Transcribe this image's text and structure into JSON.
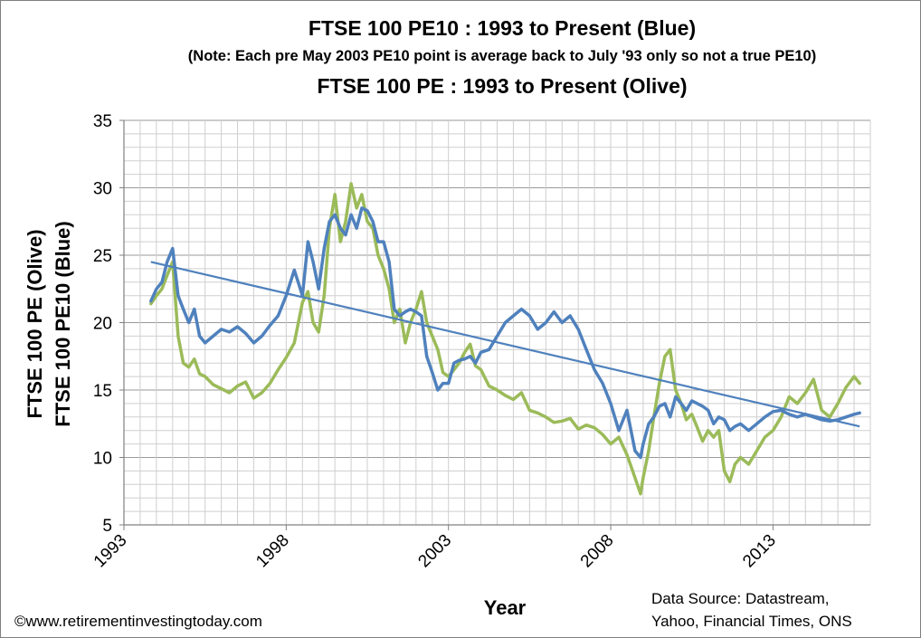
{
  "chart_data": {
    "type": "line",
    "title": "FTSE 100 PE10 : 1993 to Present (Blue)",
    "note": "(Note:  Each pre May 2003  PE10 point is average  back to July '93 only so not a true PE10)",
    "subtitle": "FTSE 100 PE : 1993 to Present (Olive)",
    "xlabel": "Year",
    "ylabel_lines": [
      "FTSE 100 PE (Olive)",
      "FTSE 100 PE10 (Blue)"
    ],
    "xlim": [
      1993,
      2016
    ],
    "ylim": [
      5,
      35
    ],
    "x_ticks": [
      "1993",
      "1998",
      "2003",
      "2008",
      "2013"
    ],
    "x_tick_values": [
      1993,
      1998,
      2003,
      2008,
      2013
    ],
    "y_ticks": [
      "5",
      "10",
      "15",
      "20",
      "25",
      "30",
      "35"
    ],
    "y_tick_values": [
      5,
      10,
      15,
      20,
      25,
      30,
      35
    ],
    "grid": true,
    "x_minor_step": 0.5,
    "y_minor_step": 1,
    "series": [
      {
        "name": "FTSE 100 PE (Olive)",
        "color": "#9bbb59",
        "x": [
          1993.83,
          1994.0,
          1994.17,
          1994.33,
          1994.5,
          1994.67,
          1994.83,
          1995.0,
          1995.17,
          1995.33,
          1995.5,
          1995.75,
          1996.0,
          1996.25,
          1996.5,
          1996.75,
          1997.0,
          1997.25,
          1997.5,
          1997.75,
          1998.0,
          1998.25,
          1998.5,
          1998.67,
          1998.83,
          1999.0,
          1999.17,
          1999.33,
          1999.5,
          1999.67,
          1999.83,
          2000.0,
          2000.17,
          2000.33,
          2000.5,
          2000.67,
          2000.83,
          2001.0,
          2001.17,
          2001.33,
          2001.5,
          2001.67,
          2001.83,
          2002.0,
          2002.17,
          2002.33,
          2002.5,
          2002.67,
          2002.83,
          2003.0,
          2003.17,
          2003.33,
          2003.5,
          2003.67,
          2003.83,
          2004.0,
          2004.25,
          2004.5,
          2004.75,
          2005.0,
          2005.25,
          2005.5,
          2005.75,
          2006.0,
          2006.25,
          2006.5,
          2006.75,
          2007.0,
          2007.25,
          2007.5,
          2007.75,
          2008.0,
          2008.25,
          2008.5,
          2008.75,
          2008.92,
          2009.0,
          2009.17,
          2009.33,
          2009.5,
          2009.67,
          2009.83,
          2010.0,
          2010.17,
          2010.33,
          2010.5,
          2010.67,
          2010.83,
          2011.0,
          2011.17,
          2011.33,
          2011.5,
          2011.67,
          2011.83,
          2012.0,
          2012.25,
          2012.5,
          2012.75,
          2013.0,
          2013.25,
          2013.5,
          2013.75,
          2014.0,
          2014.25,
          2014.5,
          2014.75,
          2015.0,
          2015.25,
          2015.5,
          2015.67
        ],
        "values": [
          21.4,
          22.0,
          22.5,
          23.5,
          24.5,
          19.0,
          17.0,
          16.7,
          17.3,
          16.2,
          16.0,
          15.4,
          15.1,
          14.8,
          15.3,
          15.6,
          14.4,
          14.8,
          15.5,
          16.5,
          17.4,
          18.5,
          21.5,
          22.3,
          20.0,
          19.3,
          22.0,
          27.0,
          29.5,
          26.0,
          27.5,
          30.3,
          28.5,
          29.5,
          27.5,
          27.0,
          25.0,
          24.0,
          22.5,
          20.0,
          21.0,
          18.5,
          20.0,
          21.0,
          22.3,
          20.0,
          19.0,
          18.0,
          16.3,
          16.0,
          16.5,
          17.0,
          17.8,
          18.4,
          16.8,
          16.5,
          15.3,
          15.0,
          14.6,
          14.3,
          14.8,
          13.5,
          13.3,
          13.0,
          12.6,
          12.7,
          12.9,
          12.1,
          12.4,
          12.2,
          11.7,
          11.0,
          11.5,
          10.2,
          8.5,
          7.3,
          8.5,
          10.5,
          13.0,
          15.5,
          17.5,
          18.0,
          15.0,
          14.0,
          12.8,
          13.2,
          12.2,
          11.2,
          12.0,
          11.5,
          12.0,
          9.0,
          8.2,
          9.5,
          10.0,
          9.5,
          10.5,
          11.5,
          12.0,
          13.0,
          14.5,
          14.0,
          14.8,
          15.8,
          13.5,
          13.0,
          14.0,
          15.2,
          16.0,
          15.5
        ],
        "trend": null
      },
      {
        "name": "FTSE 100 PE10 (Blue)",
        "color": "#4f81bd",
        "x": [
          1993.83,
          1994.0,
          1994.17,
          1994.33,
          1994.5,
          1994.67,
          1994.83,
          1995.0,
          1995.17,
          1995.33,
          1995.5,
          1995.75,
          1996.0,
          1996.25,
          1996.5,
          1996.75,
          1997.0,
          1997.25,
          1997.5,
          1997.75,
          1998.0,
          1998.25,
          1998.5,
          1998.67,
          1998.83,
          1999.0,
          1999.17,
          1999.33,
          1999.5,
          1999.67,
          1999.83,
          2000.0,
          2000.17,
          2000.33,
          2000.5,
          2000.67,
          2000.83,
          2001.0,
          2001.17,
          2001.33,
          2001.5,
          2001.67,
          2001.83,
          2002.0,
          2002.17,
          2002.33,
          2002.5,
          2002.67,
          2002.83,
          2003.0,
          2003.17,
          2003.33,
          2003.5,
          2003.67,
          2003.83,
          2004.0,
          2004.25,
          2004.5,
          2004.75,
          2005.0,
          2005.25,
          2005.5,
          2005.75,
          2006.0,
          2006.25,
          2006.5,
          2006.75,
          2007.0,
          2007.25,
          2007.5,
          2007.75,
          2008.0,
          2008.25,
          2008.5,
          2008.75,
          2008.92,
          2009.0,
          2009.17,
          2009.33,
          2009.5,
          2009.67,
          2009.83,
          2010.0,
          2010.17,
          2010.33,
          2010.5,
          2010.67,
          2010.83,
          2011.0,
          2011.17,
          2011.33,
          2011.5,
          2011.67,
          2011.83,
          2012.0,
          2012.25,
          2012.5,
          2012.75,
          2013.0,
          2013.25,
          2013.5,
          2013.75,
          2014.0,
          2014.25,
          2014.5,
          2014.75,
          2015.0,
          2015.25,
          2015.5,
          2015.67
        ],
        "values": [
          21.6,
          22.5,
          23.0,
          24.5,
          25.5,
          22.0,
          21.0,
          20.0,
          21.0,
          19.0,
          18.5,
          19.0,
          19.5,
          19.3,
          19.7,
          19.2,
          18.5,
          19.0,
          19.8,
          20.5,
          22.0,
          23.9,
          22.0,
          26.0,
          24.5,
          22.5,
          25.5,
          27.5,
          28.0,
          27.0,
          26.5,
          28.0,
          27.0,
          28.5,
          28.3,
          27.5,
          26.0,
          26.0,
          24.5,
          21.0,
          20.5,
          20.8,
          21.0,
          20.8,
          20.5,
          17.5,
          16.3,
          15.0,
          15.5,
          15.5,
          17.0,
          17.2,
          17.3,
          17.5,
          17.0,
          17.8,
          18.0,
          19.0,
          20.0,
          20.5,
          21.0,
          20.5,
          19.5,
          20.0,
          20.8,
          20.0,
          20.5,
          19.5,
          18.0,
          16.5,
          15.5,
          14.0,
          12.0,
          13.5,
          10.5,
          10.0,
          11.0,
          12.5,
          13.0,
          13.8,
          14.0,
          13.0,
          14.5,
          14.0,
          13.5,
          14.2,
          14.0,
          13.8,
          13.5,
          12.5,
          13.0,
          12.8,
          12.0,
          12.3,
          12.5,
          12.0,
          12.5,
          13.0,
          13.4,
          13.5,
          13.2,
          13.0,
          13.2,
          13.0,
          12.8,
          12.7,
          12.8,
          13.0,
          13.2,
          13.3
        ],
        "trend": {
          "x": [
            1993.83,
            2015.67
          ],
          "values": [
            24.5,
            12.3
          ]
        }
      }
    ]
  },
  "footer": {
    "copyright": "©www.retirementinvestingtoday.com",
    "source_line1": "Data Source: Datastream,",
    "source_line2": "Yahoo, Financial Times, ONS"
  }
}
